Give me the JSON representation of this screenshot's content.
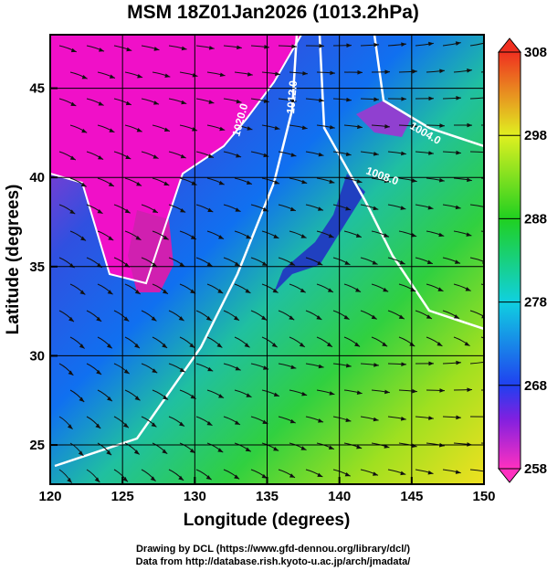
{
  "title": "MSM 18Z01Jan2026 (1013.2hPa)",
  "x_axis": {
    "label": "Longitude (degrees)",
    "range": [
      120,
      150
    ],
    "ticks": [
      120,
      125,
      130,
      135,
      140,
      145,
      150
    ]
  },
  "y_axis": {
    "label": "Latitude  (degrees)",
    "range": [
      22.8,
      48
    ],
    "ticks": [
      25,
      30,
      35,
      40,
      45
    ]
  },
  "colorbar": {
    "range": [
      258,
      308
    ],
    "ticks": [
      258,
      268,
      278,
      288,
      298,
      308
    ]
  },
  "contour_labels": [
    "1020.0",
    "1012.0",
    "1004.0",
    "1008.0"
  ],
  "credits": [
    "Drawing by DCL (https://www.gfd-dennou.org/library/dcl/)",
    "Data from http://database.rish.kyoto-u.ac.jp/arch/jmadata/"
  ]
}
